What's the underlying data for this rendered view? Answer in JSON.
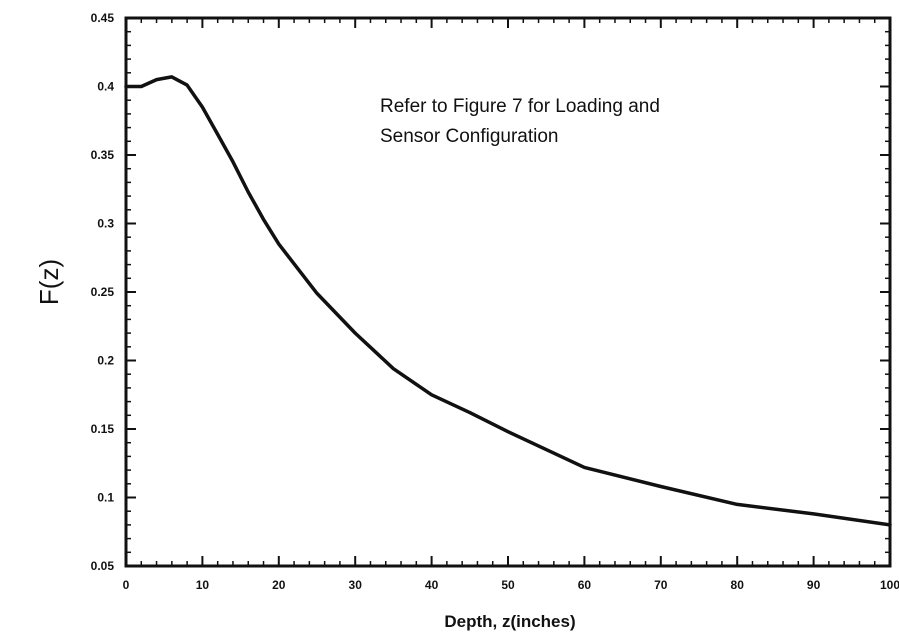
{
  "chart_data": {
    "type": "line",
    "title": "",
    "xlabel": "Depth, z(inches)",
    "ylabel": "F(z)",
    "xlim": [
      0,
      100
    ],
    "ylim": [
      0.05,
      0.45
    ],
    "x_ticks": [
      "0",
      "10",
      "20",
      "30",
      "40",
      "50",
      "60",
      "70",
      "80",
      "90",
      "100"
    ],
    "y_ticks": [
      "0.05",
      "0.1",
      "0.15",
      "0.2",
      "0.25",
      "0.3",
      "0.35",
      "0.4",
      "0.45"
    ],
    "grid": false,
    "legend": "none",
    "line_color": "#111111",
    "annotation": [
      "Refer to Figure 7 for Loading and",
      "Sensor Configuration"
    ],
    "series": [
      {
        "x": [
          0,
          2,
          4,
          6,
          8,
          10,
          12,
          14,
          16,
          18,
          20,
          25,
          30,
          35,
          40,
          45,
          50,
          55,
          60,
          70,
          80,
          90,
          100
        ],
        "y": [
          0.4,
          0.4,
          0.405,
          0.407,
          0.401,
          0.385,
          0.365,
          0.345,
          0.323,
          0.303,
          0.285,
          0.249,
          0.22,
          0.194,
          0.175,
          0.162,
          0.148,
          0.135,
          0.122,
          0.108,
          0.095,
          0.088,
          0.08
        ]
      }
    ]
  }
}
